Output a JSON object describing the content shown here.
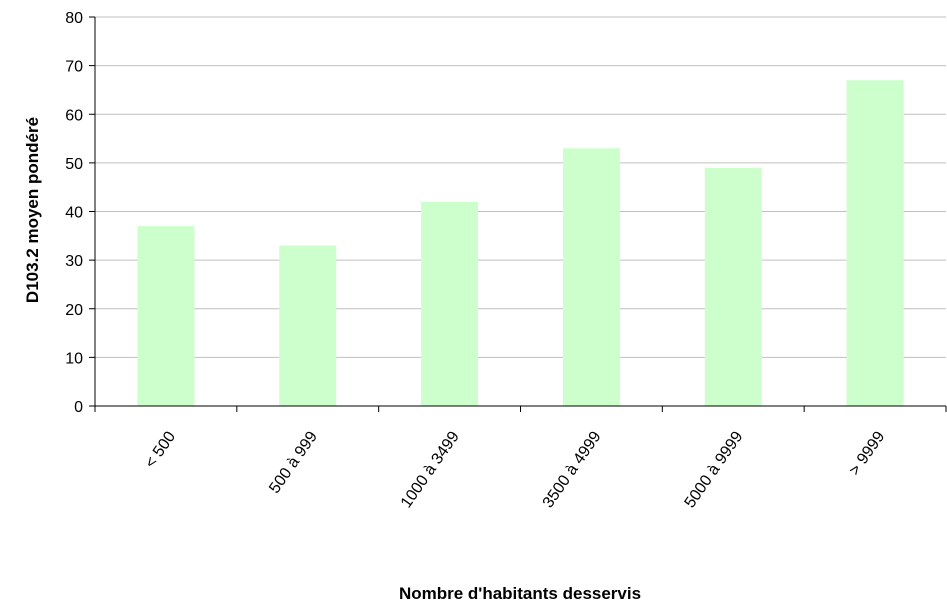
{
  "chart_data": {
    "type": "bar",
    "title": "",
    "xlabel": "Nombre d'habitants desservis",
    "ylabel": "D103.2 moyen pondéré",
    "categories": [
      "< 500",
      "500 à 999",
      "1000 à 3499",
      "3500 à 4999",
      "5000 à 9999",
      "> 9999"
    ],
    "values": [
      37,
      33,
      42,
      53,
      49,
      67
    ],
    "ylim": [
      0,
      80
    ],
    "yticks": [
      0,
      10,
      20,
      30,
      40,
      50,
      60,
      70,
      80
    ],
    "grid": true,
    "legend": "none",
    "colors": {
      "bar": "#ccffcc",
      "grid": "#c0c0c0",
      "axis": "#000000"
    }
  }
}
